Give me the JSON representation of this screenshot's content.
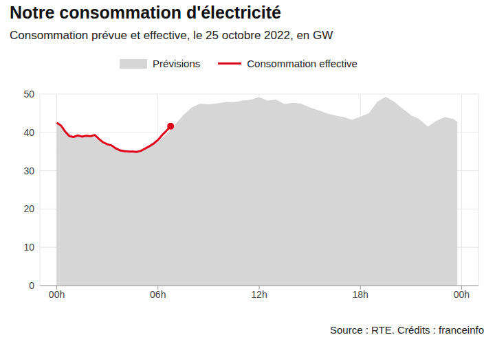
{
  "chart_data": {
    "type": "area_line",
    "title": "Notre consommation d'électricité",
    "subtitle": "Consommation prévue et effective, le 25 octobre 2022, en GW",
    "source": "Source : RTE. Crédits : franceinfo",
    "legend": "top",
    "grid": true,
    "xlim": [
      -1,
      25
    ],
    "xticks": [
      {
        "value": 0,
        "label": "00h"
      },
      {
        "value": 6,
        "label": "06h"
      },
      {
        "value": 12,
        "label": "12h"
      },
      {
        "value": 18,
        "label": "18h"
      },
      {
        "value": 24,
        "label": "00h"
      }
    ],
    "ylim": [
      0,
      50
    ],
    "yticks": [
      0,
      10,
      20,
      30,
      40,
      50
    ],
    "series": [
      {
        "name": "Prévisions",
        "type": "area",
        "color": "#d6d6d6",
        "x": [
          0,
          0.25,
          0.5,
          1,
          1.5,
          2,
          2.5,
          3,
          3.5,
          4,
          4.5,
          5,
          5.5,
          6,
          6.5,
          7,
          7.5,
          8,
          8.5,
          9,
          9.5,
          10,
          10.5,
          11,
          11.5,
          12,
          12.5,
          13,
          13.5,
          14,
          14.5,
          15,
          15.5,
          16,
          16.5,
          17,
          17.5,
          18,
          18.5,
          19,
          19.5,
          20,
          20.5,
          21,
          21.5,
          22,
          22.5,
          23,
          23.5,
          23.75
        ],
        "values": [
          42.5,
          42,
          40.5,
          39,
          39,
          39.2,
          38,
          37,
          35.8,
          35.2,
          35,
          35.2,
          36.2,
          37.5,
          39.5,
          42,
          44.5,
          46.5,
          47.5,
          47.3,
          47.6,
          47.9,
          47.8,
          48.3,
          48.5,
          49.2,
          48.3,
          48.5,
          47.4,
          47.7,
          47.5,
          46.5,
          45.8,
          45,
          44.4,
          44,
          43.3,
          44.1,
          45,
          48,
          49.3,
          48,
          46.2,
          44.5,
          43.4,
          41.5,
          43,
          44,
          43.5,
          42.8
        ]
      },
      {
        "name": "Consommation effective",
        "type": "line",
        "color": "#e2001a",
        "marker": "end",
        "x": [
          0,
          0.25,
          0.5,
          0.75,
          1,
          1.25,
          1.5,
          1.75,
          2,
          2.25,
          2.5,
          2.75,
          3,
          3.25,
          3.5,
          3.75,
          4,
          4.25,
          4.5,
          4.75,
          5,
          5.25,
          5.5,
          5.75,
          6,
          6.25,
          6.5,
          6.75
        ],
        "values": [
          42.5,
          41.8,
          40.2,
          39,
          38.8,
          39.2,
          38.9,
          39.1,
          39,
          39.3,
          38.3,
          37.4,
          36.9,
          36.6,
          35.8,
          35.3,
          35.1,
          35,
          35,
          34.9,
          35.2,
          35.8,
          36.4,
          37.1,
          38,
          39.3,
          40.4,
          41.6
        ]
      }
    ]
  }
}
